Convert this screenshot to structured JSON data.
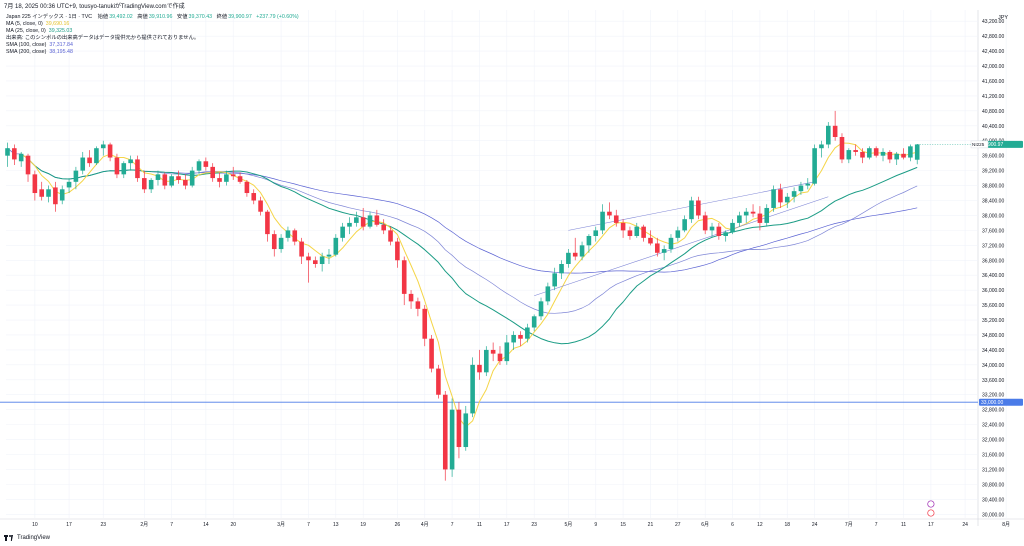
{
  "header": {
    "top_line": "7月 18, 2025 00:36 UTC+9,  tousyo-tanukiがTradingView.comで作成"
  },
  "legend": {
    "symbol": "Japan 225 インデックス · 1日 · TVC",
    "open_label": "始値",
    "open_value": "39,492.02",
    "high_label": "高値",
    "high_value": "39,910.96",
    "low_label": "安値",
    "low_value": "39,370.43",
    "close_label": "終値",
    "close_value": "39,900.97",
    "change": "+237.79 (+0.60%)",
    "ma5_label": "MA (5, close, 0)",
    "ma5_value": "39,690.16",
    "ma25_label": "MA (25, close, 0)",
    "ma25_value": "39,325.03",
    "volume_note": "出来高: このシンボルの出来高データはデータ提供元から提供されておりません。",
    "sma100_label": "SMA (100, close)",
    "sma100_value": "37,317.84",
    "sma200_label": "SMA (200, close)",
    "sma200_value": "38,195.48"
  },
  "footer": {
    "brand": "TradingView"
  },
  "colors": {
    "up": "#22ab94",
    "down": "#f23645",
    "ma5": "#f5d547",
    "ma25": "#1b9c85",
    "sma100": "#7f86d6",
    "sma200": "#5b63d3",
    "level_line": "#4a7be8",
    "grid": "#f0f3fa"
  },
  "chart_data": {
    "type": "candlestick",
    "currency": "JPY",
    "y_ticks": [
      "43,200.00",
      "42,800.00",
      "42,400.00",
      "42,000.00",
      "41,600.00",
      "41,200.00",
      "40,800.00",
      "40,400.00",
      "40,000.00",
      "39,600.00",
      "39,200.00",
      "38,800.00",
      "38,400.00",
      "38,000.00",
      "37,600.00",
      "37,200.00",
      "36,800.00",
      "36,400.00",
      "36,000.00",
      "35,600.00",
      "35,200.00",
      "34,800.00",
      "34,400.00",
      "34,000.00",
      "33,600.00",
      "33,200.00",
      "32,800.00",
      "32,400.00",
      "32,000.00",
      "31,600.00",
      "31,200.00",
      "30,800.00",
      "30,400.00",
      "30,000.00"
    ],
    "ylim": [
      29900,
      43500
    ],
    "x_ticks": [
      {
        "label": "10",
        "i": 4
      },
      {
        "label": "17",
        "i": 9
      },
      {
        "label": "23",
        "i": 14
      },
      {
        "label": "2月",
        "i": 20
      },
      {
        "label": "7",
        "i": 24
      },
      {
        "label": "14",
        "i": 29
      },
      {
        "label": "20",
        "i": 33
      },
      {
        "label": "3月",
        "i": 40
      },
      {
        "label": "7",
        "i": 44
      },
      {
        "label": "13",
        "i": 48
      },
      {
        "label": "19",
        "i": 52
      },
      {
        "label": "26",
        "i": 57
      },
      {
        "label": "4月",
        "i": 61
      },
      {
        "label": "7",
        "i": 65
      },
      {
        "label": "11",
        "i": 69
      },
      {
        "label": "17",
        "i": 73
      },
      {
        "label": "23",
        "i": 77
      },
      {
        "label": "5月",
        "i": 82
      },
      {
        "label": "9",
        "i": 86
      },
      {
        "label": "15",
        "i": 90
      },
      {
        "label": "21",
        "i": 94
      },
      {
        "label": "27",
        "i": 98
      },
      {
        "label": "6月",
        "i": 102
      },
      {
        "label": "6",
        "i": 106
      },
      {
        "label": "12",
        "i": 110
      },
      {
        "label": "18",
        "i": 114
      },
      {
        "label": "24",
        "i": 118
      },
      {
        "label": "7月",
        "i": 123
      },
      {
        "label": "7",
        "i": 127
      },
      {
        "label": "11",
        "i": 131
      },
      {
        "label": "17",
        "i": 135
      },
      {
        "label": "24",
        "i": 140
      },
      {
        "label": "8月",
        "i": 146
      }
    ],
    "last_price": "39,900.97",
    "symbol_tag": "NI225",
    "level": {
      "value": 33000,
      "label": "33,000.00"
    },
    "candles": [
      [
        39600,
        39950,
        39300,
        39800
      ],
      [
        39800,
        39900,
        39350,
        39500
      ],
      [
        39450,
        39700,
        39300,
        39650
      ],
      [
        39600,
        39650,
        38900,
        39100
      ],
      [
        39100,
        39200,
        38400,
        38600
      ],
      [
        38700,
        38900,
        38400,
        38500
      ],
      [
        38500,
        38800,
        38350,
        38700
      ],
      [
        38750,
        38900,
        38100,
        38300
      ],
      [
        38400,
        38800,
        38300,
        38700
      ],
      [
        38750,
        39000,
        38600,
        38900
      ],
      [
        38900,
        39300,
        38700,
        39200
      ],
      [
        39200,
        39700,
        39100,
        39550
      ],
      [
        39550,
        39750,
        39300,
        39400
      ],
      [
        39400,
        39850,
        39350,
        39800
      ],
      [
        39800,
        40000,
        39600,
        39900
      ],
      [
        39900,
        39950,
        39450,
        39550
      ],
      [
        39550,
        39650,
        39000,
        39100
      ],
      [
        39100,
        39450,
        39000,
        39400
      ],
      [
        39400,
        39600,
        39200,
        39500
      ],
      [
        39500,
        39600,
        38900,
        39000
      ],
      [
        39000,
        39200,
        38600,
        38700
      ],
      [
        38700,
        39000,
        38600,
        38950
      ],
      [
        38950,
        39200,
        38800,
        39100
      ],
      [
        39100,
        39150,
        38700,
        38800
      ],
      [
        38800,
        39100,
        38750,
        39050
      ],
      [
        39050,
        39200,
        38850,
        38950
      ],
      [
        38950,
        39100,
        38700,
        38800
      ],
      [
        38800,
        39300,
        38750,
        39200
      ],
      [
        39200,
        39500,
        39100,
        39450
      ],
      [
        39450,
        39550,
        39200,
        39300
      ],
      [
        39300,
        39400,
        38900,
        39000
      ],
      [
        39000,
        39150,
        38750,
        38900
      ],
      [
        38900,
        39200,
        38800,
        39100
      ],
      [
        39100,
        39300,
        38950,
        39050
      ],
      [
        39050,
        39150,
        38850,
        38900
      ],
      [
        38900,
        38950,
        38500,
        38600
      ],
      [
        38600,
        38700,
        38300,
        38400
      ],
      [
        38400,
        38500,
        38000,
        38100
      ],
      [
        38100,
        38150,
        37300,
        37500
      ],
      [
        37500,
        37600,
        36900,
        37100
      ],
      [
        37100,
        37500,
        37000,
        37400
      ],
      [
        37400,
        37700,
        37300,
        37600
      ],
      [
        37600,
        37650,
        37200,
        37300
      ],
      [
        37300,
        37400,
        36700,
        36900
      ],
      [
        36900,
        37000,
        36200,
        36800
      ],
      [
        36800,
        36900,
        36600,
        36700
      ],
      [
        36700,
        37000,
        36500,
        36900
      ],
      [
        36900,
        37100,
        36700,
        36950
      ],
      [
        36950,
        37500,
        36900,
        37400
      ],
      [
        37400,
        37800,
        37300,
        37700
      ],
      [
        37700,
        37950,
        37500,
        37800
      ],
      [
        37800,
        38100,
        37700,
        37950
      ],
      [
        37950,
        38200,
        37600,
        37700
      ],
      [
        37700,
        38100,
        37650,
        38000
      ],
      [
        38000,
        38150,
        37700,
        37750
      ],
      [
        37750,
        37900,
        37500,
        37600
      ],
      [
        37600,
        37700,
        37200,
        37300
      ],
      [
        37300,
        37400,
        36600,
        36800
      ],
      [
        36800,
        36900,
        35600,
        35900
      ],
      [
        35900,
        36000,
        35500,
        35700
      ],
      [
        35700,
        35800,
        35300,
        35500
      ],
      [
        35500,
        35600,
        34500,
        34700
      ],
      [
        34700,
        34800,
        33800,
        33900
      ],
      [
        33900,
        34000,
        33100,
        33200
      ],
      [
        33200,
        33300,
        30900,
        31200
      ],
      [
        31200,
        33100,
        31000,
        32800
      ],
      [
        32800,
        33000,
        31500,
        31800
      ],
      [
        31800,
        32900,
        31700,
        32700
      ],
      [
        32700,
        34200,
        32600,
        34000
      ],
      [
        34000,
        34400,
        33600,
        33800
      ],
      [
        33800,
        34500,
        33700,
        34400
      ],
      [
        34400,
        34600,
        34100,
        34300
      ],
      [
        34300,
        34500,
        34000,
        34100
      ],
      [
        34100,
        34800,
        34000,
        34600
      ],
      [
        34600,
        34900,
        34400,
        34800
      ],
      [
        34800,
        34900,
        34500,
        34700
      ],
      [
        34700,
        35100,
        34600,
        35000
      ],
      [
        35000,
        35350,
        34900,
        35300
      ],
      [
        35300,
        35800,
        35200,
        35700
      ],
      [
        35700,
        36200,
        35600,
        36100
      ],
      [
        36100,
        36600,
        36000,
        36450
      ],
      [
        36450,
        36800,
        36300,
        36700
      ],
      [
        36700,
        37100,
        36600,
        37000
      ],
      [
        37000,
        37400,
        36800,
        36900
      ],
      [
        36900,
        37300,
        36800,
        37200
      ],
      [
        37200,
        37500,
        37000,
        37450
      ],
      [
        37450,
        37700,
        37300,
        37600
      ],
      [
        37600,
        38300,
        37500,
        38100
      ],
      [
        38100,
        38350,
        37900,
        38000
      ],
      [
        38000,
        38150,
        37700,
        37800
      ],
      [
        37800,
        37900,
        37400,
        37600
      ],
      [
        37600,
        37700,
        37350,
        37450
      ],
      [
        37450,
        37800,
        37400,
        37700
      ],
      [
        37700,
        37750,
        37300,
        37400
      ],
      [
        37400,
        37600,
        37200,
        37250
      ],
      [
        37250,
        37400,
        36900,
        37000
      ],
      [
        37000,
        37200,
        36800,
        37100
      ],
      [
        37100,
        37500,
        37000,
        37400
      ],
      [
        37400,
        37700,
        37300,
        37600
      ],
      [
        37600,
        38000,
        37550,
        37900
      ],
      [
        37900,
        38500,
        37800,
        38400
      ],
      [
        38400,
        38500,
        37900,
        38000
      ],
      [
        38000,
        38100,
        37500,
        37600
      ],
      [
        37600,
        37800,
        37400,
        37700
      ],
      [
        37700,
        37800,
        37350,
        37450
      ],
      [
        37450,
        37600,
        37300,
        37550
      ],
      [
        37550,
        37900,
        37500,
        37800
      ],
      [
        37800,
        38100,
        37700,
        38000
      ],
      [
        38000,
        38200,
        37800,
        38100
      ],
      [
        38100,
        38300,
        37950,
        38050
      ],
      [
        38050,
        38250,
        37600,
        37800
      ],
      [
        37800,
        38300,
        37700,
        38200
      ],
      [
        38200,
        38800,
        38100,
        38700
      ],
      [
        38700,
        38850,
        38200,
        38350
      ],
      [
        38350,
        38600,
        38200,
        38500
      ],
      [
        38500,
        38750,
        38350,
        38650
      ],
      [
        38650,
        38900,
        38550,
        38800
      ],
      [
        38800,
        39000,
        38700,
        38850
      ],
      [
        38850,
        39900,
        38800,
        39800
      ],
      [
        39800,
        40000,
        39550,
        39900
      ],
      [
        39900,
        40500,
        39800,
        40400
      ],
      [
        40400,
        40800,
        40000,
        40100
      ],
      [
        40100,
        40200,
        39400,
        39500
      ],
      [
        39500,
        39800,
        39400,
        39750
      ],
      [
        39750,
        39900,
        39600,
        39700
      ],
      [
        39700,
        39800,
        39400,
        39550
      ],
      [
        39550,
        39850,
        39500,
        39800
      ],
      [
        39800,
        39850,
        39550,
        39600
      ],
      [
        39600,
        39800,
        39450,
        39700
      ],
      [
        39700,
        39750,
        39400,
        39500
      ],
      [
        39500,
        39700,
        39350,
        39650
      ],
      [
        39650,
        39800,
        39500,
        39550
      ],
      [
        39550,
        39900,
        39450,
        39850
      ],
      [
        39492,
        39911,
        39370,
        39901
      ]
    ]
  }
}
